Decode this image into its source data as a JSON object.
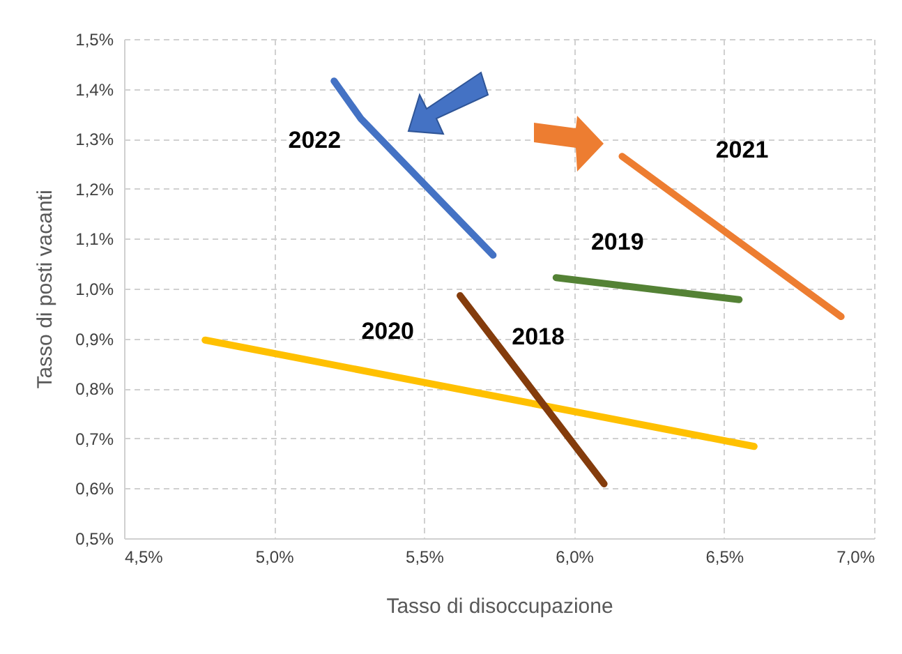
{
  "chart_data": {
    "type": "line",
    "xlabel": "Tasso di disoccupazione",
    "ylabel": "Tasso di posti vacanti",
    "series": [
      {
        "name": "2022",
        "color": "#4472c4",
        "x": [
          5.2,
          5.29,
          5.73
        ],
        "values": [
          1.416,
          1.34,
          1.067
        ]
      },
      {
        "name": "2021",
        "color": "#ed7d31",
        "x": [
          6.16,
          6.89
        ],
        "values": [
          1.265,
          0.944
        ]
      },
      {
        "name": "2019",
        "color": "#548235",
        "x": [
          5.94,
          6.55
        ],
        "values": [
          1.022,
          0.978
        ]
      },
      {
        "name": "2020",
        "color": "#ffc000",
        "x": [
          4.77,
          6.6
        ],
        "values": [
          0.897,
          0.684
        ]
      },
      {
        "name": "2018",
        "color": "#843c0c",
        "x": [
          5.62,
          6.1
        ],
        "values": [
          0.986,
          0.609
        ]
      }
    ],
    "xlim": [
      4.5,
      7.0
    ],
    "xticks": [
      {
        "value": 4.5,
        "label": "4,5%"
      },
      {
        "value": 5.0,
        "label": "5,0%"
      },
      {
        "value": 5.5,
        "label": "5,5%"
      },
      {
        "value": 6.0,
        "label": "6,0%"
      },
      {
        "value": 6.5,
        "label": "6,5%"
      },
      {
        "value": 7.0,
        "label": "7,0%"
      }
    ],
    "ylim": [
      0.5,
      1.5
    ],
    "yticks": [
      {
        "value": 0.5,
        "label": "0,5%"
      },
      {
        "value": 0.6,
        "label": "0,6%"
      },
      {
        "value": 0.7,
        "label": "0,7%"
      },
      {
        "value": 0.8,
        "label": "0,8%"
      },
      {
        "value": 0.9,
        "label": "0,9%"
      },
      {
        "value": 1.0,
        "label": "1,0%"
      },
      {
        "value": 1.1,
        "label": "1,1%"
      },
      {
        "value": 1.2,
        "label": "1,2%"
      },
      {
        "value": 1.3,
        "label": "1,3%"
      },
      {
        "value": 1.4,
        "label": "1,4%"
      },
      {
        "value": 1.5,
        "label": "1,5%"
      }
    ],
    "grid": true,
    "line_style": "solid"
  }
}
